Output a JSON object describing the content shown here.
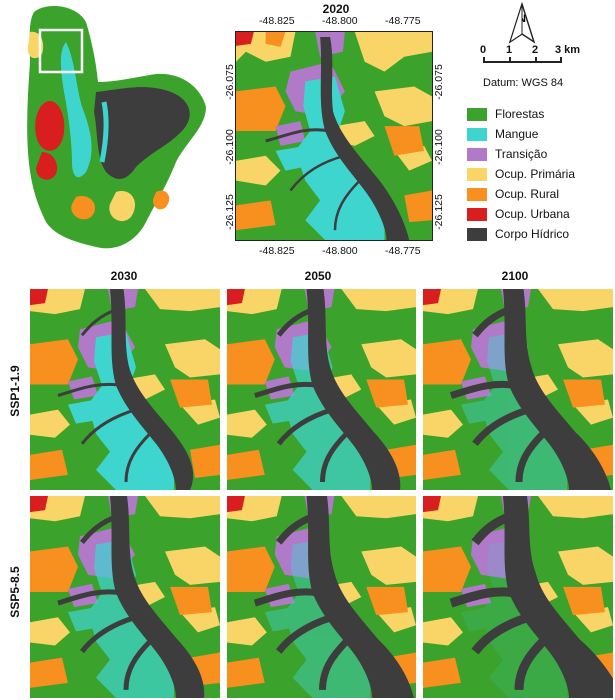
{
  "main_map": {
    "title": "2020",
    "x_ticks_top": [
      "-48.825",
      "-48.800",
      "-48.775"
    ],
    "x_ticks_bottom": [
      "-48.825",
      "-48.800",
      "-48.775"
    ],
    "y_ticks_left": [
      "-26.075",
      "-26.100",
      "-26.125"
    ],
    "y_ticks_right": [
      "-26.075",
      "-26.100",
      "-26.125"
    ]
  },
  "scale_bar": {
    "labels": [
      "0",
      "1",
      "2",
      "3 km"
    ],
    "datum": "Datum: WGS 84"
  },
  "north_arrow": {
    "label": "N"
  },
  "legend": [
    {
      "label": "Florestas",
      "color": "#3ba22b"
    },
    {
      "label": "Mangue",
      "color": "#3fd5cf"
    },
    {
      "label": "Transição",
      "color": "#b07ac8"
    },
    {
      "label": "Ocup. Primária",
      "color": "#f8d566"
    },
    {
      "label": "Ocup. Rural",
      "color": "#f7901f"
    },
    {
      "label": "Ocup. Urbana",
      "color": "#d81e1e"
    },
    {
      "label": "Corpo Hídrico",
      "color": "#3d3d3d"
    }
  ],
  "scenario_grid": {
    "years": [
      "2030",
      "2050",
      "2100"
    ],
    "scenarios": [
      "SSP1-1.9",
      "SSP5-8.5"
    ]
  },
  "colors": {
    "forest": "#3ba22b",
    "mangrove": "#3fd5cf",
    "transition": "#b07ac8",
    "primary": "#f8d566",
    "rural": "#f7901f",
    "urban": "#d81e1e",
    "water": "#3d3d3d"
  }
}
